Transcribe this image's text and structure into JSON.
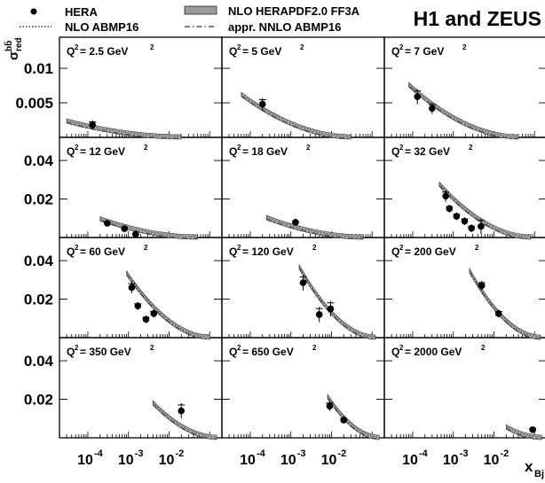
{
  "chart_data": {
    "type": "scatter",
    "title": "H1 and ZEUS",
    "ylabel": {
      "base": "σ",
      "sup": "bb̄",
      "sub": "red"
    },
    "xlabel": {
      "base": "x",
      "sub": "Bj"
    },
    "log_x": true,
    "xlim": [
      2e-05,
      0.2
    ],
    "x_ticks": [
      {
        "value": 0.0001,
        "base": "10",
        "exp": "-4"
      },
      {
        "value": 0.001,
        "base": "10",
        "exp": "-3"
      },
      {
        "value": 0.01,
        "base": "10",
        "exp": "-2"
      }
    ],
    "row_ylim": [
      [
        0,
        0.0145
      ],
      [
        0,
        0.052
      ],
      [
        0,
        0.052
      ],
      [
        0,
        0.052
      ]
    ],
    "row_ticks": [
      [
        "0.01",
        "0.005"
      ],
      [
        "0.04",
        "0.02"
      ],
      [
        "0.04",
        "0.02"
      ],
      [
        "0.04",
        "0.02"
      ]
    ],
    "row_tick_values": [
      [
        0.01,
        0.005
      ],
      [
        0.04,
        0.02
      ],
      [
        0.04,
        0.02
      ],
      [
        0.04,
        0.02
      ]
    ],
    "legend": [
      {
        "marker": "dot",
        "label": "HERA"
      },
      {
        "marker": "dotted",
        "label": "NLO ABMP16"
      },
      {
        "marker": "band",
        "label": "NLO HERAPDF2.0 FF3A"
      },
      {
        "marker": "dashdot",
        "label": "appr. NNLO ABMP16"
      }
    ],
    "panels": [
      {
        "q2_text": "2.5",
        "row": 0,
        "col": 0,
        "curve_x": [
          3e-05,
          0.02
        ],
        "points": [
          {
            "x": 0.00013,
            "y": 0.0018,
            "err": 0.0007
          }
        ]
      },
      {
        "q2_text": "5",
        "row": 0,
        "col": 1,
        "curve_x": [
          6e-05,
          0.03
        ],
        "points": [
          {
            "x": 0.0002,
            "y": 0.0048,
            "err": 0.0009
          }
        ]
      },
      {
        "q2_text": "7",
        "row": 0,
        "col": 2,
        "curve_x": [
          8e-05,
          0.04
        ],
        "points": [
          {
            "x": 0.00013,
            "y": 0.0059,
            "err": 0.0011
          },
          {
            "x": 0.0003,
            "y": 0.0042,
            "err": 0.0008
          }
        ]
      },
      {
        "q2_text": "12",
        "row": 1,
        "col": 0,
        "curve_x": [
          0.0002,
          0.05
        ],
        "points": [
          {
            "x": 0.0003,
            "y": 0.0074,
            "err": 0.0015
          },
          {
            "x": 0.0008,
            "y": 0.0046,
            "err": 0.0012
          },
          {
            "x": 0.0015,
            "y": 0.0017,
            "err": 0.001
          }
        ]
      },
      {
        "q2_text": "18",
        "row": 1,
        "col": 1,
        "curve_x": [
          0.00025,
          0.06
        ],
        "points": [
          {
            "x": 0.0013,
            "y": 0.0079,
            "err": 0.0012
          }
        ]
      },
      {
        "q2_text": "32",
        "row": 1,
        "col": 2,
        "curve_x": [
          0.00045,
          0.08
        ],
        "points": [
          {
            "x": 0.00065,
            "y": 0.0215,
            "err": 0.003
          },
          {
            "x": 0.0008,
            "y": 0.015,
            "err": 0.002
          },
          {
            "x": 0.0012,
            "y": 0.011,
            "err": 0.002
          },
          {
            "x": 0.0019,
            "y": 0.0085,
            "err": 0.002
          },
          {
            "x": 0.0028,
            "y": 0.0048,
            "err": 0.002
          },
          {
            "x": 0.0048,
            "y": 0.0058,
            "err": 0.004
          }
        ]
      },
      {
        "q2_text": "60",
        "row": 2,
        "col": 0,
        "curve_x": [
          0.0009,
          0.1
        ],
        "points": [
          {
            "x": 0.0012,
            "y": 0.026,
            "err": 0.003
          },
          {
            "x": 0.0017,
            "y": 0.0165,
            "err": 0.002
          },
          {
            "x": 0.0027,
            "y": 0.0095,
            "err": 0.002
          },
          {
            "x": 0.0042,
            "y": 0.0125,
            "err": 0.002
          }
        ]
      },
      {
        "q2_text": "120",
        "row": 2,
        "col": 1,
        "curve_x": [
          0.0016,
          0.12
        ],
        "points": [
          {
            "x": 0.002,
            "y": 0.0285,
            "err": 0.004
          },
          {
            "x": 0.005,
            "y": 0.012,
            "err": 0.004
          },
          {
            "x": 0.0095,
            "y": 0.015,
            "err": 0.004
          }
        ]
      },
      {
        "q2_text": "200",
        "row": 2,
        "col": 2,
        "curve_x": [
          0.0025,
          0.14
        ],
        "points": [
          {
            "x": 0.005,
            "y": 0.027,
            "err": 0.0025
          },
          {
            "x": 0.013,
            "y": 0.0125,
            "err": 0.002
          }
        ]
      },
      {
        "q2_text": "350",
        "row": 3,
        "col": 0,
        "curve_x": [
          0.004,
          0.15
        ],
        "points": [
          {
            "x": 0.02,
            "y": 0.014,
            "err": 0.004
          }
        ]
      },
      {
        "q2_text": "650",
        "row": 3,
        "col": 1,
        "curve_x": [
          0.008,
          0.15
        ],
        "points": [
          {
            "x": 0.009,
            "y": 0.0165,
            "err": 0.0025
          },
          {
            "x": 0.02,
            "y": 0.0092,
            "err": 0.0015
          }
        ]
      },
      {
        "q2_text": "2000",
        "row": 3,
        "col": 2,
        "curve_x": [
          0.02,
          0.15
        ],
        "points": [
          {
            "x": 0.09,
            "y": 0.0042,
            "err": 0.0015
          }
        ]
      }
    ]
  }
}
